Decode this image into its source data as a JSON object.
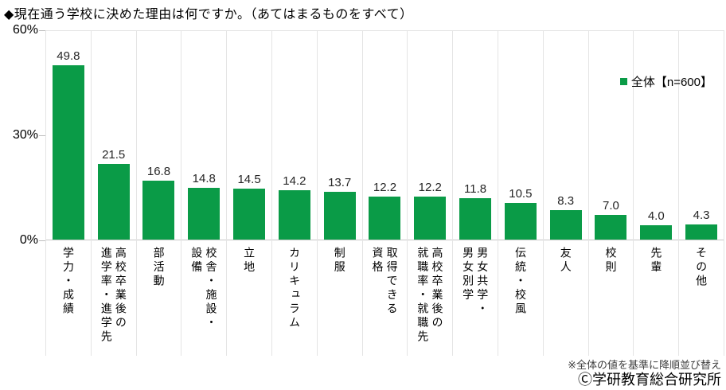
{
  "title": "◆現在通う学校に決めた理由は何ですか。（あてはまるものをすべて）",
  "legend": {
    "label": "全体【n=600】",
    "color": "#0a9b47"
  },
  "y_axis": {
    "ticks": [
      {
        "label": "60%",
        "value": 60
      },
      {
        "label": "30%",
        "value": 30
      },
      {
        "label": "0%",
        "value": 0
      }
    ]
  },
  "chart_data": {
    "type": "bar",
    "title": "現在通う学校に決めた理由は何ですか。（あてはまるものをすべて）",
    "categories": [
      "学力・成績",
      "高校卒業後の\n進学率・進学先",
      "部活動",
      "校舎・施設・\n設備",
      "立地",
      "カリキュラム",
      "制服",
      "取得できる\n資格",
      "高校卒業後の\n就職率・就職先",
      "男女共学・\n男女別学",
      "伝統・校風",
      "友人",
      "校則",
      "先輩",
      "その他"
    ],
    "values": [
      49.8,
      21.5,
      16.8,
      14.8,
      14.5,
      14.2,
      13.7,
      12.2,
      12.2,
      11.8,
      10.5,
      8.3,
      7.0,
      4.0,
      4.3
    ],
    "series_name": "全体【n=600】",
    "xlabel": "",
    "ylabel": "%",
    "ylim": [
      0,
      60
    ],
    "bar_color": "#0a9b47",
    "grid": "vertical-separators-only",
    "legend_position": "right-inside"
  },
  "footnote": "※全体の値を基準に降順並び替え",
  "copyright": "Ⓒ学研教育総合研究所"
}
